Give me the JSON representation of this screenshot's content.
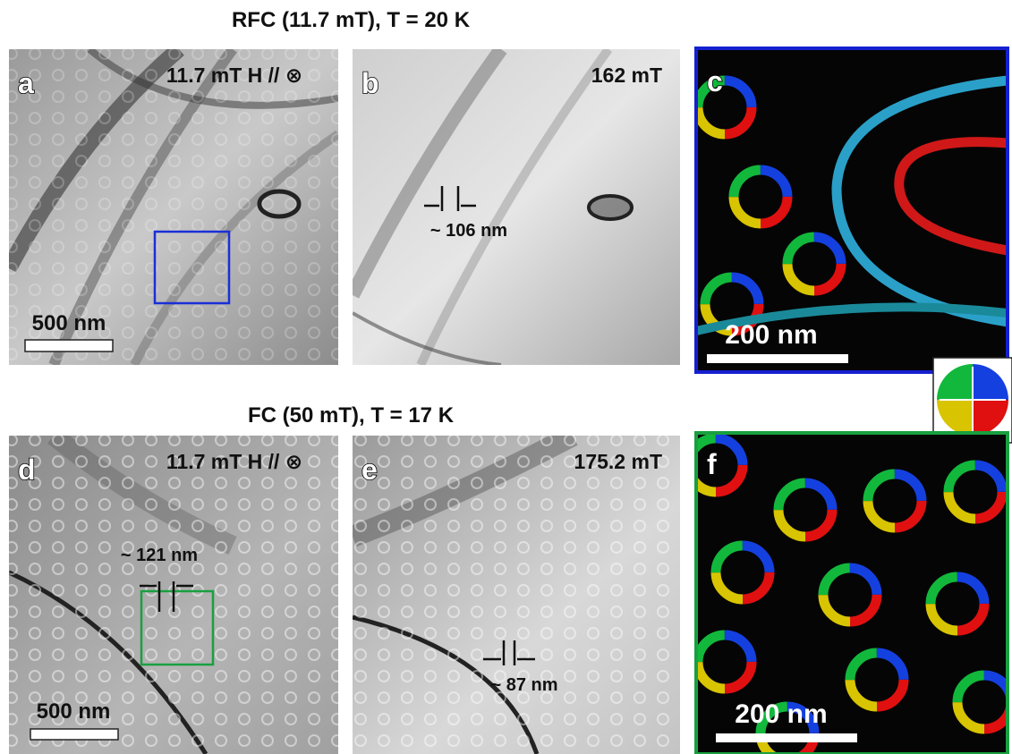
{
  "rows": [
    {
      "title": "RFC (11.7 mT), T = 20 K",
      "panels": [
        {
          "label": "a",
          "field": "11.7 mT H // ⊗",
          "scale_bar": "500 nm"
        },
        {
          "label": "b",
          "field": "162 mT",
          "measure": "~ 106 nm"
        },
        {
          "label": "c",
          "scale_bar": "200 nm"
        }
      ]
    },
    {
      "title": "FC (50 mT), T = 17 K",
      "panels": [
        {
          "label": "d",
          "field": "11.7 mT H // ⊗",
          "measure": "~ 121 nm",
          "scale_bar": "500 nm"
        },
        {
          "label": "e",
          "field": "175.2 mT",
          "measure": "~ 87 nm"
        },
        {
          "label": "f",
          "scale_bar": "200 nm"
        }
      ]
    }
  ]
}
